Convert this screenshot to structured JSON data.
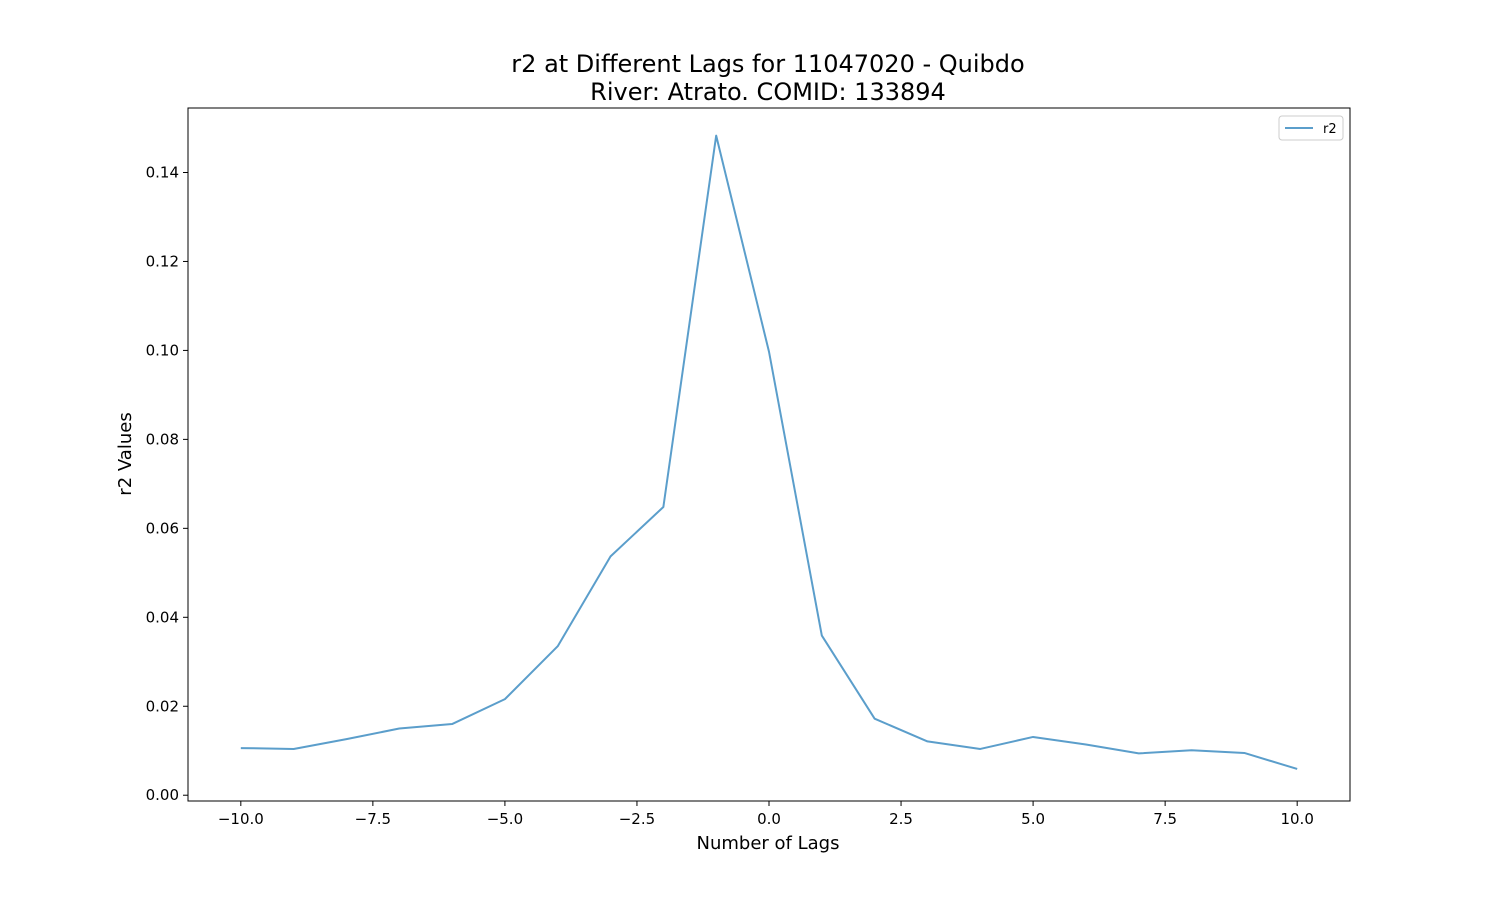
{
  "chart_data": {
    "type": "line",
    "title": "r2 at Different Lags for 11047020 - Quibdo",
    "subtitle": "River: Atrato. COMID: 133894",
    "xlabel": "Number of Lags",
    "ylabel": "r2 Values",
    "xlim": [
      -11.0,
      11.0
    ],
    "ylim": [
      -0.0013,
      0.1545
    ],
    "xticks": [
      -10.0,
      -7.5,
      -5.0,
      -2.5,
      0.0,
      2.5,
      5.0,
      7.5,
      10.0
    ],
    "xtick_labels": [
      "−10.0",
      "−7.5",
      "−5.0",
      "−2.5",
      "0.0",
      "2.5",
      "5.0",
      "7.5",
      "10.0"
    ],
    "yticks": [
      0.0,
      0.02,
      0.04,
      0.06,
      0.08,
      0.1,
      0.12,
      0.14
    ],
    "ytick_labels": [
      "0.00",
      "0.02",
      "0.04",
      "0.06",
      "0.08",
      "0.10",
      "0.12",
      "0.14"
    ],
    "grid": false,
    "legend_position": "top-right",
    "series": [
      {
        "name": "r2",
        "color": "#5b9ecb",
        "x": [
          -10,
          -9,
          -8,
          -7,
          -6,
          -5,
          -4,
          -3,
          -2,
          -1,
          0,
          1,
          2,
          3,
          4,
          5,
          6,
          7,
          8,
          9,
          10
        ],
        "y": [
          0.0106,
          0.0104,
          0.0126,
          0.015,
          0.016,
          0.0216,
          0.0335,
          0.0537,
          0.0648,
          0.1483,
          0.0997,
          0.0359,
          0.0172,
          0.0121,
          0.0104,
          0.0131,
          0.0114,
          0.0094,
          0.0101,
          0.0095,
          0.0059
        ]
      }
    ]
  }
}
